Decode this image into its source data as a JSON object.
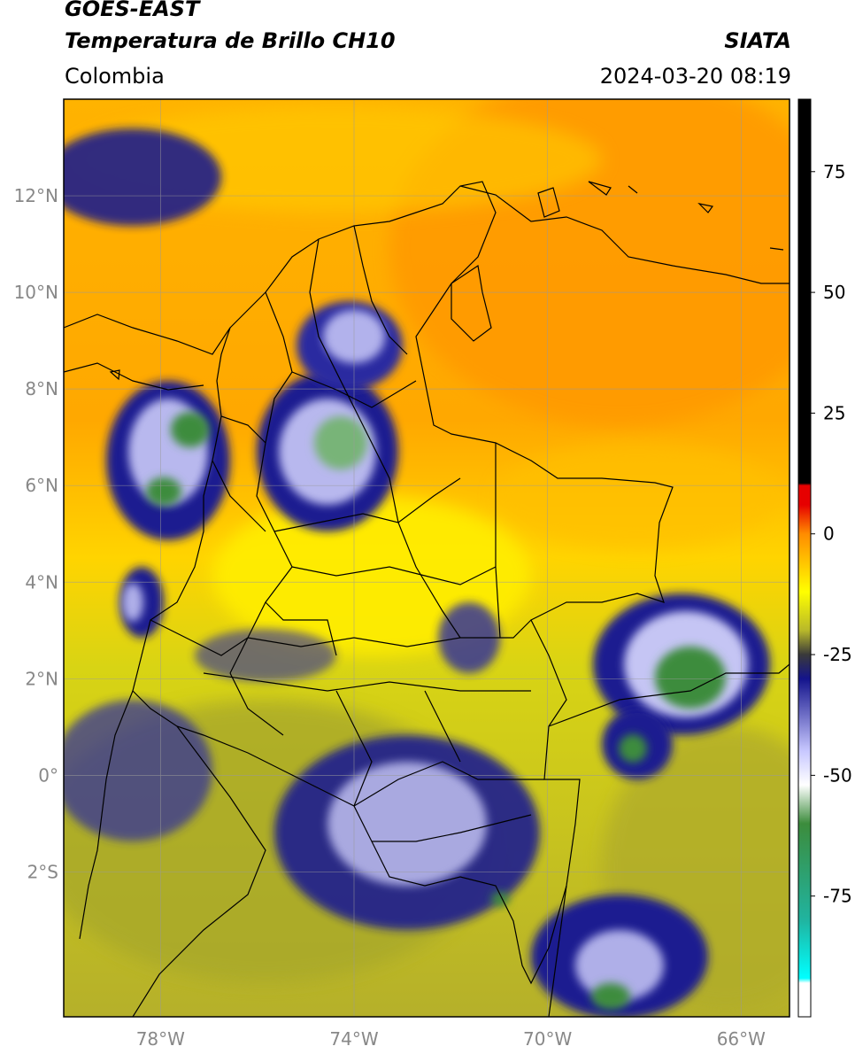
{
  "header": {
    "satellite": "GOES-EAST",
    "product": "Temperatura de Brillo CH10",
    "region": "Colombia",
    "organization": "SIATA",
    "datetime": "2024-03-20 08:19"
  },
  "map": {
    "lon_range": [
      -80,
      -65
    ],
    "lat_range": [
      -5,
      14
    ],
    "lat_ticks": [
      {
        "value": 12,
        "label": "12°N"
      },
      {
        "value": 10,
        "label": "10°N"
      },
      {
        "value": 8,
        "label": "8°N"
      },
      {
        "value": 6,
        "label": "6°N"
      },
      {
        "value": 4,
        "label": "4°N"
      },
      {
        "value": 2,
        "label": "2°N"
      },
      {
        "value": 0,
        "label": "0°"
      },
      {
        "value": -2,
        "label": "2°S"
      }
    ],
    "lon_ticks": [
      {
        "value": -78,
        "label": "78°W"
      },
      {
        "value": -74,
        "label": "74°W"
      },
      {
        "value": -70,
        "label": "70°W"
      },
      {
        "value": -66,
        "label": "66°W"
      }
    ],
    "grid": true
  },
  "colorbar": {
    "range": [
      -100,
      90
    ],
    "ticks": [
      {
        "value": 75,
        "label": "75"
      },
      {
        "value": 50,
        "label": "50"
      },
      {
        "value": 25,
        "label": "25"
      },
      {
        "value": 0,
        "label": "0"
      },
      {
        "value": -25,
        "label": "-25"
      },
      {
        "value": -50,
        "label": "-50"
      },
      {
        "value": -75,
        "label": "-75"
      }
    ],
    "colors": {
      "above_10": "#000000",
      "c8": "#e60000",
      "c0": "#ff8c00",
      "cm12": "#ffff00",
      "cm20": "#b8b82a",
      "cm25": "#3a3a3a",
      "cm30": "#14148c",
      "cm45": "#c8c8ff",
      "cm52": "#ffffff",
      "cm60": "#3c8c3c",
      "cm80": "#20b4a0",
      "cm92": "#00ffff",
      "cm100": "#ffffff"
    }
  }
}
